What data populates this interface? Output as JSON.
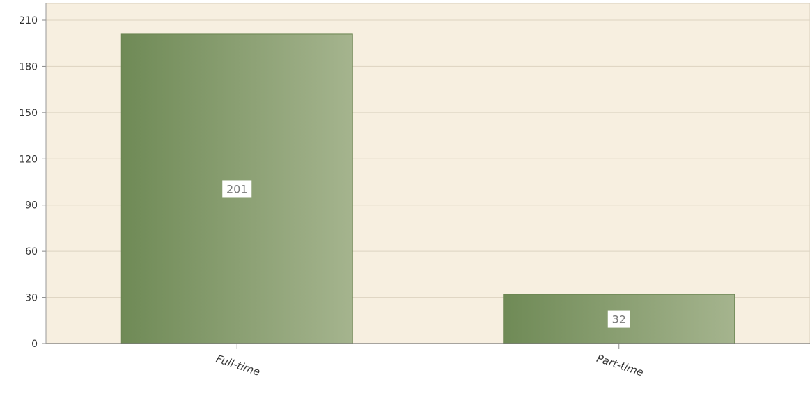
{
  "chart_data": {
    "type": "bar",
    "title": "",
    "xlabel": "",
    "ylabel": "",
    "categories": [
      "Full-time",
      "Part-time"
    ],
    "values": [
      201,
      32
    ],
    "data_labels": [
      "201",
      "32"
    ],
    "ylim": [
      0,
      210
    ],
    "y_ticks": [
      "0",
      "30",
      "60",
      "90",
      "120",
      "150",
      "180",
      "210"
    ],
    "grid": true,
    "legend": "none",
    "colors": {
      "plot_background": "#f7efe0",
      "gridline": "#dcd3c1",
      "bar_dark": "#6f8a56",
      "bar_light": "#a5b48e",
      "axis": "#8a8a8a",
      "label_box": "#ffffff"
    }
  }
}
